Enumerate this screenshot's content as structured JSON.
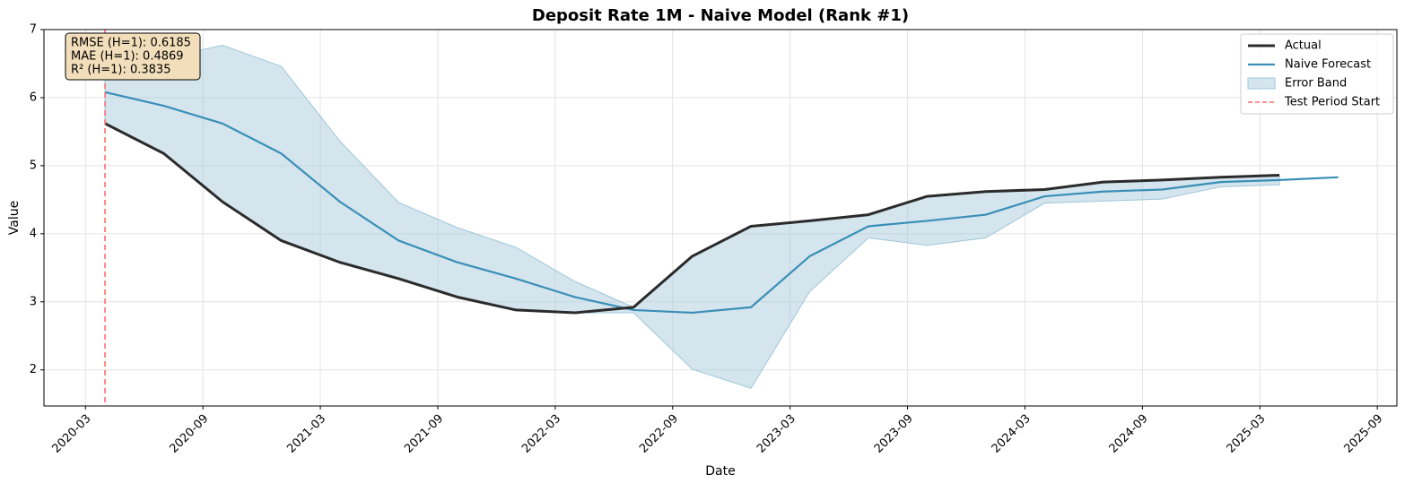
{
  "chart_data": {
    "type": "line",
    "title": "Deposit Rate 1M - Naive Model (Rank #1)",
    "xlabel": "Date",
    "ylabel": "Value",
    "x": [
      "2020-04",
      "2020-07",
      "2020-10",
      "2021-01",
      "2021-04",
      "2021-07",
      "2021-10",
      "2022-01",
      "2022-04",
      "2022-07",
      "2022-10",
      "2023-01",
      "2023-04",
      "2023-07",
      "2023-10",
      "2024-01",
      "2024-04",
      "2024-07",
      "2024-10",
      "2025-01",
      "2025-04",
      "2025-07"
    ],
    "series": [
      {
        "name": "Actual",
        "color": "#2b2b2b",
        "width": 3,
        "values": [
          5.62,
          5.18,
          4.47,
          3.9,
          3.58,
          3.34,
          3.07,
          2.88,
          2.84,
          2.92,
          3.67,
          4.11,
          4.19,
          4.28,
          4.55,
          4.62,
          4.65,
          4.76,
          4.79,
          4.83,
          4.86,
          null
        ]
      },
      {
        "name": "Naive Forecast",
        "color": "#3a8fb7",
        "width": 2.2,
        "values": [
          6.08,
          5.88,
          5.62,
          5.18,
          4.47,
          3.9,
          3.58,
          3.34,
          3.07,
          2.88,
          2.84,
          2.92,
          3.67,
          4.11,
          4.19,
          4.28,
          4.55,
          4.62,
          4.65,
          4.76,
          4.79,
          4.83
        ]
      }
    ],
    "band": {
      "name": "Error Band",
      "color": "#9fc6d9",
      "lower": [
        5.62,
        5.18,
        4.47,
        3.9,
        3.58,
        3.34,
        3.07,
        2.88,
        2.84,
        2.84,
        2.01,
        1.73,
        3.15,
        3.94,
        3.83,
        3.94,
        4.45,
        4.48,
        4.51,
        4.69,
        4.72,
        null
      ],
      "upper": [
        6.54,
        6.58,
        6.77,
        6.46,
        5.36,
        4.46,
        4.09,
        3.8,
        3.3,
        2.92,
        3.67,
        4.11,
        4.19,
        4.28,
        4.55,
        4.62,
        4.65,
        4.76,
        4.79,
        4.83,
        4.86,
        null
      ]
    },
    "vline": {
      "name": "Test Period Start",
      "x": "2020-04",
      "color": "#ff6b6b"
    },
    "annotation": [
      "RMSE (H=1): 0.6185",
      "MAE (H=1): 0.4869",
      "R² (H=1): 0.3835"
    ],
    "xlim": [
      2019.99,
      2025.75
    ],
    "xticks": [
      "2020-03",
      "2020-09",
      "2021-03",
      "2021-09",
      "2022-03",
      "2022-09",
      "2023-03",
      "2023-09",
      "2024-03",
      "2024-09",
      "2025-03",
      "2025-09"
    ],
    "ylim": [
      1.47,
      7
    ],
    "yticks": [
      2,
      3,
      4,
      5,
      6,
      7
    ],
    "grid": true,
    "legend": "upper-right"
  }
}
